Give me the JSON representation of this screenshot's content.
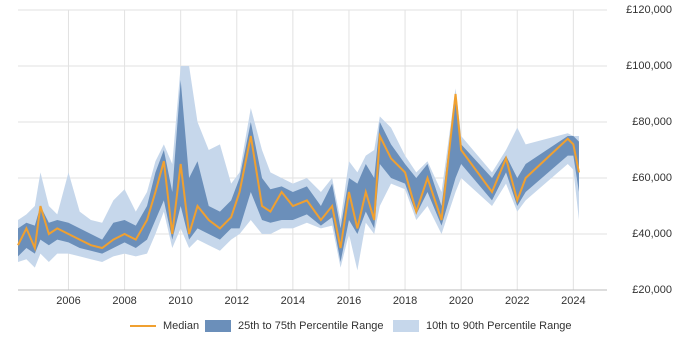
{
  "chart_data": {
    "type": "percentile-bands",
    "x": [
      2004.2,
      2004.5,
      2004.8,
      2005.0,
      2005.3,
      2005.6,
      2006.0,
      2006.4,
      2006.8,
      2007.2,
      2007.6,
      2008.0,
      2008.4,
      2008.8,
      2009.1,
      2009.4,
      2009.7,
      2010.0,
      2010.3,
      2010.6,
      2011.0,
      2011.4,
      2011.8,
      2012.1,
      2012.5,
      2012.9,
      2013.2,
      2013.6,
      2014.0,
      2014.5,
      2015.0,
      2015.4,
      2015.7,
      2016.0,
      2016.3,
      2016.6,
      2016.9,
      2017.1,
      2017.5,
      2018.0,
      2018.4,
      2018.8,
      2019.3,
      2019.8,
      2020.0,
      2021.1,
      2021.6,
      2022.0,
      2022.3,
      2023.8,
      2024.0,
      2024.2
    ],
    "series": [
      {
        "name": "Median",
        "color": "#f0a030",
        "values": [
          36000,
          42000,
          35000,
          50000,
          40000,
          42000,
          40000,
          38000,
          36000,
          35000,
          38000,
          40000,
          38000,
          45000,
          55000,
          66000,
          40000,
          65000,
          40000,
          50000,
          45000,
          42000,
          46000,
          55000,
          75000,
          50000,
          48000,
          55000,
          50000,
          52000,
          45000,
          50000,
          35000,
          55000,
          42000,
          55000,
          45000,
          75000,
          67000,
          62000,
          48000,
          60000,
          45000,
          90000,
          70000,
          55000,
          67000,
          52000,
          60000,
          74000,
          72000,
          62000
        ]
      },
      {
        "name": "25th to 75th Percentile Range",
        "color": "#6b8fba",
        "low": [
          32000,
          35000,
          33000,
          38000,
          36000,
          38000,
          37000,
          35000,
          34000,
          33000,
          35000,
          37000,
          35000,
          38000,
          45000,
          52000,
          38000,
          50000,
          38000,
          42000,
          40000,
          38000,
          42000,
          42000,
          55000,
          45000,
          44000,
          45000,
          45000,
          47000,
          43000,
          46000,
          30000,
          45000,
          40000,
          48000,
          42000,
          65000,
          60000,
          58000,
          47000,
          55000,
          43000,
          60000,
          65000,
          52000,
          62000,
          50000,
          55000,
          68000,
          68000,
          55000
        ],
        "high": [
          42000,
          44000,
          43000,
          50000,
          44000,
          45000,
          44000,
          42000,
          40000,
          38000,
          44000,
          45000,
          43000,
          50000,
          62000,
          70000,
          55000,
          95000,
          60000,
          66000,
          50000,
          48000,
          52000,
          60000,
          80000,
          60000,
          56000,
          57000,
          55000,
          57000,
          50000,
          58000,
          42000,
          60000,
          58000,
          65000,
          60000,
          80000,
          72000,
          65000,
          60000,
          65000,
          50000,
          90000,
          72000,
          60000,
          68000,
          60000,
          65000,
          75000,
          75000,
          73000
        ]
      },
      {
        "name": "10th to 90th Percentile Range",
        "color": "#c6d7eb",
        "low": [
          30000,
          31000,
          28000,
          33000,
          30000,
          33000,
          33000,
          32000,
          31000,
          30000,
          32000,
          33000,
          32000,
          33000,
          40000,
          48000,
          35000,
          42000,
          35000,
          38000,
          36000,
          34000,
          38000,
          40000,
          45000,
          40000,
          40000,
          42000,
          42000,
          44000,
          42000,
          43000,
          28000,
          40000,
          27000,
          44000,
          40000,
          50000,
          58000,
          56000,
          45000,
          50000,
          40000,
          55000,
          60000,
          50000,
          58000,
          48000,
          52000,
          65000,
          63000,
          45000
        ],
        "high": [
          45000,
          47000,
          50000,
          62000,
          50000,
          47000,
          62000,
          48000,
          45000,
          44000,
          52000,
          56000,
          48000,
          55000,
          66000,
          72000,
          65000,
          100000,
          100000,
          80000,
          70000,
          72000,
          58000,
          62000,
          85000,
          70000,
          62000,
          60000,
          58000,
          60000,
          55000,
          60000,
          45000,
          66000,
          62000,
          68000,
          70000,
          82000,
          78000,
          68000,
          62000,
          66000,
          55000,
          92000,
          75000,
          62000,
          70000,
          78000,
          72000,
          76000,
          75000,
          75000
        ]
      }
    ],
    "xlim": [
      2004.2,
      2025.2
    ],
    "xticks": [
      2006,
      2008,
      2010,
      2012,
      2014,
      2016,
      2018,
      2020,
      2022,
      2024
    ],
    "ylim": [
      20000,
      120000
    ],
    "yticks": [
      {
        "value": 20000,
        "label": "£20,000"
      },
      {
        "value": 40000,
        "label": "£40,000"
      },
      {
        "value": 60000,
        "label": "£60,000"
      },
      {
        "value": 80000,
        "label": "£80,000"
      },
      {
        "value": 100000,
        "label": "£100,000"
      },
      {
        "value": 120000,
        "label": "£120,000"
      }
    ],
    "grid": true
  }
}
